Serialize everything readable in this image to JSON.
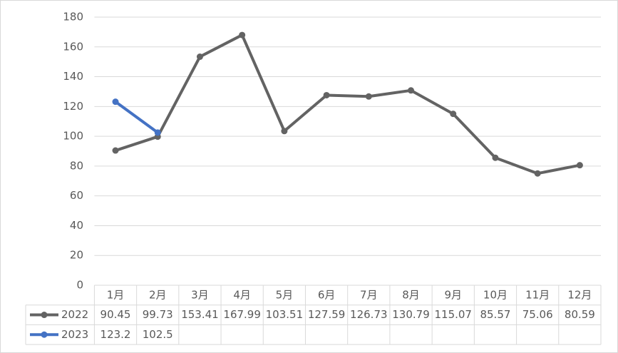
{
  "chart_data": {
    "type": "line",
    "categories": [
      "1月",
      "2月",
      "3月",
      "4月",
      "5月",
      "6月",
      "7月",
      "8月",
      "9月",
      "10月",
      "11月",
      "12月"
    ],
    "series": [
      {
        "name": "2022",
        "color": "#636363",
        "values": [
          90.45,
          99.73,
          153.41,
          167.99,
          103.51,
          127.59,
          126.73,
          130.79,
          115.07,
          85.57,
          75.06,
          80.59
        ]
      },
      {
        "name": "2023",
        "color": "#4472c4",
        "values": [
          123.2,
          102.5,
          null,
          null,
          null,
          null,
          null,
          null,
          null,
          null,
          null,
          null
        ]
      }
    ],
    "ylim": [
      0,
      180
    ],
    "yticks": [
      0,
      20,
      40,
      60,
      80,
      100,
      120,
      140,
      160,
      180
    ],
    "grid": true
  }
}
